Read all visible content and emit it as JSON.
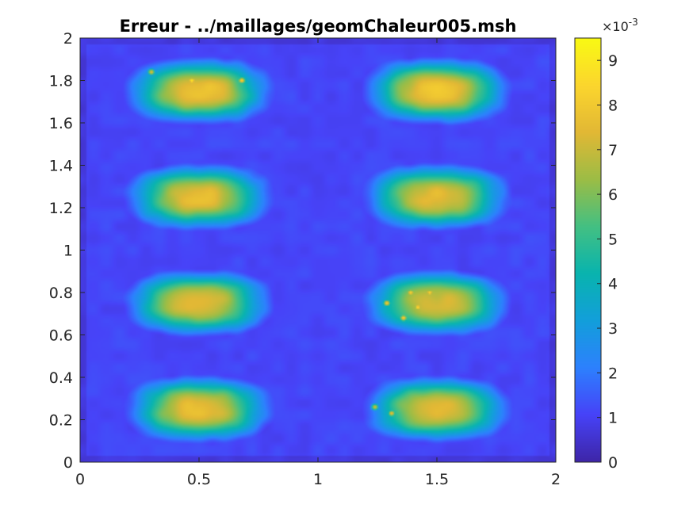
{
  "chart_data": {
    "type": "heatmap",
    "title": "Erreur - ../maillages/geomChaleur005.msh",
    "xlim": [
      0,
      2
    ],
    "ylim": [
      0,
      2
    ],
    "x_ticks": [
      0,
      0.5,
      1,
      1.5,
      2
    ],
    "x_tick_labels": [
      "0",
      "0.5",
      "1",
      "1.5",
      "2"
    ],
    "y_ticks": [
      0,
      0.2,
      0.4,
      0.6,
      0.8,
      1,
      1.2,
      1.4,
      1.6,
      1.8,
      2
    ],
    "y_tick_labels": [
      "0",
      "0.2",
      "0.4",
      "0.6",
      "0.8",
      "1",
      "1.2",
      "1.4",
      "1.6",
      "1.8",
      "2"
    ],
    "colorbar": {
      "range": [
        0,
        0.0095
      ],
      "ticks": [
        0,
        1,
        2,
        3,
        4,
        5,
        6,
        7,
        8,
        9
      ],
      "tick_labels": [
        "0",
        "1",
        "2",
        "3",
        "4",
        "5",
        "6",
        "7",
        "8",
        "9"
      ],
      "exponent_label": "×10",
      "exponent_power": "-3",
      "colormap": "parula",
      "colors": [
        "#3e26a8",
        "#4743f8",
        "#2d81fe",
        "#139fdb",
        "#09b4af",
        "#44c083",
        "#9cbd46",
        "#e2b835",
        "#fcd62e",
        "#f9fa14"
      ]
    },
    "grid": false,
    "blobs": [
      {
        "cx": 0.5,
        "cy": 1.75,
        "peak": 0.0078
      },
      {
        "cx": 1.5,
        "cy": 1.75,
        "peak": 0.0078
      },
      {
        "cx": 0.5,
        "cy": 1.25,
        "peak": 0.0075
      },
      {
        "cx": 1.5,
        "cy": 1.25,
        "peak": 0.0075
      },
      {
        "cx": 0.5,
        "cy": 0.75,
        "peak": 0.0075
      },
      {
        "cx": 1.5,
        "cy": 0.75,
        "peak": 0.0072
      },
      {
        "cx": 0.5,
        "cy": 0.25,
        "peak": 0.0076
      },
      {
        "cx": 1.5,
        "cy": 0.25,
        "peak": 0.0074
      }
    ],
    "hotspots": [
      {
        "x": 0.47,
        "y": 1.8,
        "v": 0.0092
      },
      {
        "x": 0.68,
        "y": 1.8,
        "v": 0.0085
      },
      {
        "x": 0.3,
        "y": 1.84,
        "v": 0.0075
      },
      {
        "x": 1.39,
        "y": 0.8,
        "v": 0.0085
      },
      {
        "x": 1.47,
        "y": 0.8,
        "v": 0.0086
      },
      {
        "x": 1.42,
        "y": 0.73,
        "v": 0.0088
      },
      {
        "x": 1.36,
        "y": 0.68,
        "v": 0.0084
      },
      {
        "x": 1.29,
        "y": 0.75,
        "v": 0.0083
      },
      {
        "x": 1.31,
        "y": 0.23,
        "v": 0.0078
      },
      {
        "x": 1.24,
        "y": 0.26,
        "v": 0.0072
      }
    ]
  }
}
